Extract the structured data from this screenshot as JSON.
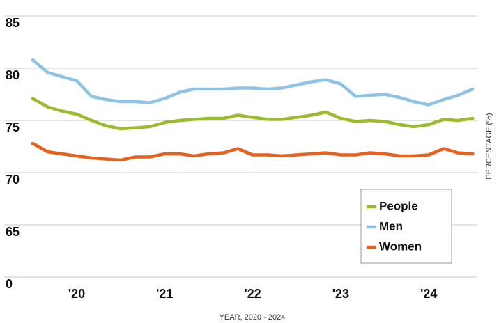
{
  "chart_data": {
    "type": "line",
    "x_label": "YEAR, 2020 - 2024",
    "y_label": "PERCENTAGE (%)",
    "x": [
      2019.5,
      2019.67,
      2019.83,
      2020,
      2020.17,
      2020.33,
      2020.5,
      2020.67,
      2020.83,
      2021,
      2021.17,
      2021.33,
      2021.5,
      2021.67,
      2021.83,
      2022,
      2022.17,
      2022.33,
      2022.5,
      2022.67,
      2022.83,
      2023,
      2023.17,
      2023.33,
      2023.5,
      2023.67,
      2023.83,
      2024,
      2024.17,
      2024.33,
      2024.5
    ],
    "series": [
      {
        "name": "People",
        "color": "#9bbb2f",
        "values": [
          77.1,
          76.3,
          75.9,
          75.6,
          75.0,
          74.5,
          74.2,
          74.3,
          74.4,
          74.8,
          75.0,
          75.1,
          75.2,
          75.2,
          75.5,
          75.3,
          75.1,
          75.1,
          75.3,
          75.5,
          75.8,
          75.2,
          74.9,
          75.0,
          74.9,
          74.6,
          74.4,
          74.6,
          75.1,
          75.0,
          75.2
        ]
      },
      {
        "name": "Men",
        "color": "#8ec3e6",
        "values": [
          80.8,
          79.6,
          79.2,
          78.8,
          77.3,
          77.0,
          76.8,
          76.8,
          76.7,
          77.1,
          77.7,
          78.0,
          78.0,
          78.0,
          78.1,
          78.1,
          78.0,
          78.1,
          78.4,
          78.7,
          78.9,
          78.5,
          77.3,
          77.4,
          77.5,
          77.2,
          76.8,
          76.5,
          77.0,
          77.4,
          78.0
        ]
      },
      {
        "name": "Women",
        "color": "#e8601c",
        "values": [
          72.8,
          72.0,
          71.8,
          71.6,
          71.4,
          71.3,
          71.2,
          71.5,
          71.5,
          71.8,
          71.8,
          71.6,
          71.8,
          71.9,
          72.3,
          71.7,
          71.7,
          71.6,
          71.7,
          71.8,
          71.9,
          71.7,
          71.7,
          71.9,
          71.8,
          71.6,
          71.6,
          71.7,
          72.3,
          71.9,
          71.8
        ]
      }
    ],
    "xlim": [
      2019.45,
      2024.55
    ],
    "xticks": [
      {
        "value": 2020,
        "label": "'20"
      },
      {
        "value": 2021,
        "label": "'21"
      },
      {
        "value": 2022,
        "label": "'22"
      },
      {
        "value": 2023,
        "label": "'23"
      },
      {
        "value": 2024,
        "label": "'24"
      }
    ],
    "ylim": [
      60,
      85
    ],
    "yticks": [
      85,
      80,
      75,
      70,
      65,
      {
        "value": 60,
        "label": "0"
      }
    ],
    "grid": true,
    "legend": "lower right"
  }
}
